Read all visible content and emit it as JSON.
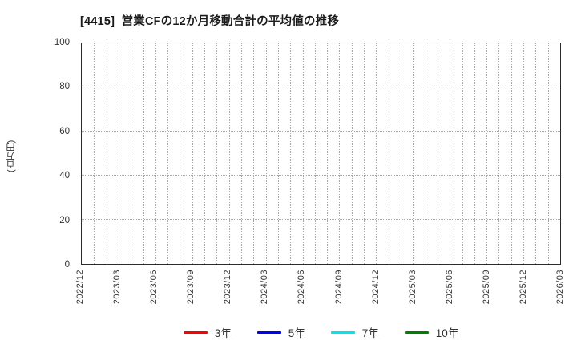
{
  "chart_data": {
    "type": "line",
    "title": "[4415]  営業CFの12か月移動合計の平均値の推移",
    "ylabel": "(百万円)",
    "xlabel": "",
    "ylim": [
      0,
      100
    ],
    "y_ticks": [
      0,
      20,
      40,
      60,
      80,
      100
    ],
    "x_tick_labels": [
      "2022/12",
      "2023/03",
      "2023/06",
      "2023/09",
      "2023/12",
      "2024/03",
      "2024/06",
      "2024/09",
      "2024/12",
      "2025/03",
      "2025/06",
      "2025/09",
      "2025/12",
      "2026/03"
    ],
    "x_tick_interval_months": 3,
    "x_total_months": 39,
    "grid": "on",
    "grid_style": "dotted",
    "legend_position": "bottom",
    "series": [
      {
        "name": "3年",
        "color": "#ff0000",
        "values": []
      },
      {
        "name": "5年",
        "color": "#0000ff",
        "values": []
      },
      {
        "name": "7年",
        "color": "#00e5ee",
        "values": []
      },
      {
        "name": "10年",
        "color": "#008000",
        "values": []
      }
    ]
  }
}
